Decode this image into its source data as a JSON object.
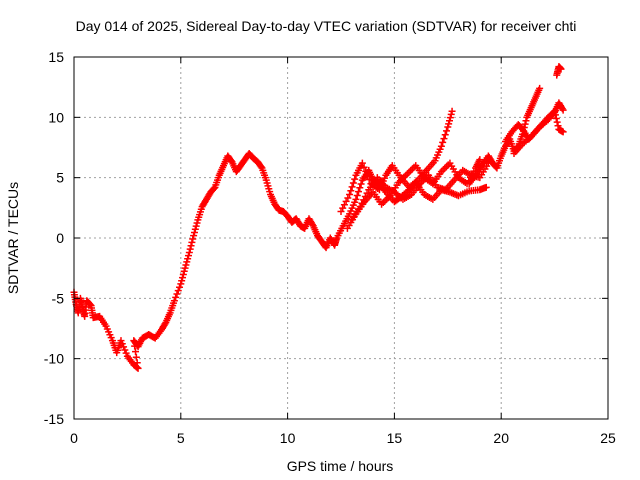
{
  "chart_data": {
    "type": "scatter",
    "title": "Day 014 of 2025, Sidereal Day-to-day VTEC variation (SDTVAR) for receiver chti",
    "xlabel": "GPS time / hours",
    "ylabel": "SDTVAR / TECUs",
    "xlim": [
      0,
      25
    ],
    "ylim": [
      -15,
      15
    ],
    "xticks": [
      0,
      5,
      10,
      15,
      20,
      25
    ],
    "yticks": [
      -15,
      -10,
      -5,
      0,
      5,
      10,
      15
    ],
    "grid": true,
    "marker": "+",
    "color": "#ff0000",
    "series": [
      {
        "points": [
          [
            0.0,
            -4.5
          ],
          [
            0.1,
            -5.5
          ],
          [
            0.2,
            -6.2
          ],
          [
            0.3,
            -5.0
          ],
          [
            0.4,
            -5.8
          ],
          [
            0.5,
            -6.5
          ],
          [
            0.6,
            -5.2
          ],
          [
            0.8,
            -5.6
          ],
          [
            0.9,
            -6.6
          ],
          [
            1.2,
            -6.5
          ],
          [
            1.5,
            -7.3
          ],
          [
            1.8,
            -8.5
          ],
          [
            2.0,
            -9.5
          ],
          [
            2.2,
            -8.5
          ],
          [
            2.5,
            -9.8
          ],
          [
            2.8,
            -10.5
          ],
          [
            3.0,
            -10.8
          ],
          [
            2.8,
            -8.5
          ],
          [
            3.0,
            -9.0
          ],
          [
            3.2,
            -8.3
          ],
          [
            3.5,
            -8.0
          ],
          [
            3.8,
            -8.3
          ],
          [
            4.1,
            -7.6
          ],
          [
            4.3,
            -7.0
          ],
          [
            4.5,
            -6.2
          ],
          [
            4.7,
            -5.2
          ],
          [
            5.0,
            -3.8
          ],
          [
            5.2,
            -2.5
          ],
          [
            5.4,
            -1.2
          ],
          [
            5.6,
            0.2
          ],
          [
            5.8,
            1.5
          ],
          [
            6.0,
            2.6
          ],
          [
            6.2,
            3.2
          ],
          [
            6.4,
            3.8
          ],
          [
            6.6,
            4.2
          ],
          [
            6.8,
            5.2
          ],
          [
            7.0,
            6.0
          ],
          [
            7.2,
            6.8
          ],
          [
            7.4,
            6.3
          ],
          [
            7.6,
            5.5
          ],
          [
            7.8,
            6.0
          ],
          [
            8.0,
            6.5
          ],
          [
            8.2,
            7.0
          ],
          [
            8.4,
            6.6
          ],
          [
            8.6,
            6.3
          ],
          [
            8.8,
            5.8
          ],
          [
            9.0,
            4.8
          ],
          [
            9.2,
            3.6
          ],
          [
            9.4,
            2.8
          ],
          [
            9.6,
            2.3
          ],
          [
            9.8,
            2.2
          ],
          [
            10.0,
            1.8
          ],
          [
            10.2,
            1.3
          ],
          [
            10.4,
            1.6
          ],
          [
            10.6,
            1.0
          ],
          [
            10.8,
            0.8
          ],
          [
            11.0,
            1.6
          ],
          [
            11.2,
            1.0
          ],
          [
            11.4,
            0.2
          ],
          [
            11.6,
            -0.3
          ],
          [
            11.8,
            -0.8
          ],
          [
            12.0,
            0.0
          ],
          [
            12.2,
            -0.6
          ],
          [
            12.3,
            0.0
          ],
          [
            12.6,
            1.0
          ],
          [
            12.9,
            2.0
          ],
          [
            13.2,
            3.2
          ],
          [
            13.5,
            4.8
          ],
          [
            13.8,
            5.6
          ],
          [
            14.0,
            4.8
          ],
          [
            14.3,
            4.5
          ],
          [
            14.6,
            3.8
          ],
          [
            15.0,
            3.0
          ],
          [
            15.3,
            3.4
          ],
          [
            15.7,
            4.0
          ],
          [
            16.0,
            4.6
          ],
          [
            16.4,
            3.6
          ],
          [
            16.8,
            3.2
          ],
          [
            17.2,
            4.0
          ],
          [
            17.6,
            3.8
          ],
          [
            18.0,
            3.5
          ],
          [
            18.5,
            3.9
          ],
          [
            19.0,
            4.0
          ],
          [
            19.3,
            4.2
          ],
          [
            12.5,
            2.2
          ],
          [
            12.9,
            3.6
          ],
          [
            13.2,
            5.2
          ],
          [
            13.5,
            6.2
          ],
          [
            13.9,
            4.5
          ],
          [
            14.3,
            4.0
          ],
          [
            14.6,
            5.2
          ],
          [
            14.9,
            6.0
          ],
          [
            15.3,
            5.0
          ],
          [
            15.7,
            4.2
          ],
          [
            16.1,
            4.8
          ],
          [
            16.5,
            5.6
          ],
          [
            16.9,
            6.4
          ],
          [
            17.2,
            7.6
          ],
          [
            17.5,
            9.2
          ],
          [
            17.7,
            10.5
          ],
          [
            12.8,
            0.8
          ],
          [
            13.2,
            2.0
          ],
          [
            13.6,
            3.0
          ],
          [
            14.0,
            3.8
          ],
          [
            14.4,
            2.8
          ],
          [
            14.8,
            3.5
          ],
          [
            15.2,
            4.6
          ],
          [
            15.6,
            5.3
          ],
          [
            16.0,
            6.0
          ],
          [
            16.4,
            5.0
          ],
          [
            16.8,
            4.5
          ],
          [
            17.2,
            5.5
          ],
          [
            17.6,
            6.2
          ],
          [
            18.0,
            5.0
          ],
          [
            18.4,
            4.5
          ],
          [
            18.8,
            5.8
          ],
          [
            19.0,
            6.5
          ],
          [
            13.0,
            1.5
          ],
          [
            13.4,
            2.6
          ],
          [
            13.8,
            4.0
          ],
          [
            14.2,
            5.0
          ],
          [
            14.6,
            4.2
          ],
          [
            15.0,
            3.8
          ],
          [
            15.4,
            3.2
          ],
          [
            15.8,
            3.6
          ],
          [
            16.2,
            4.5
          ],
          [
            16.6,
            5.2
          ],
          [
            17.0,
            4.2
          ],
          [
            17.4,
            4.0
          ],
          [
            17.8,
            4.8
          ],
          [
            18.2,
            5.6
          ],
          [
            18.6,
            5.2
          ],
          [
            19.0,
            5.0
          ],
          [
            19.4,
            6.2
          ],
          [
            18.5,
            4.5
          ],
          [
            18.8,
            5.2
          ],
          [
            19.1,
            6.0
          ],
          [
            19.4,
            6.8
          ],
          [
            19.6,
            6.2
          ],
          [
            19.8,
            5.8
          ],
          [
            20.0,
            6.8
          ],
          [
            20.2,
            7.6
          ],
          [
            20.4,
            8.2
          ],
          [
            20.6,
            7.2
          ],
          [
            20.8,
            7.6
          ],
          [
            21.0,
            8.6
          ],
          [
            21.2,
            10.0
          ],
          [
            21.4,
            10.8
          ],
          [
            21.6,
            11.6
          ],
          [
            21.8,
            12.4
          ],
          [
            20.2,
            8.0
          ],
          [
            20.5,
            8.8
          ],
          [
            20.8,
            9.4
          ],
          [
            21.0,
            9.0
          ],
          [
            21.3,
            8.2
          ],
          [
            21.6,
            8.8
          ],
          [
            21.9,
            9.4
          ],
          [
            22.2,
            10.0
          ],
          [
            22.5,
            10.5
          ],
          [
            22.7,
            9.0
          ],
          [
            22.9,
            8.8
          ],
          [
            20.6,
            7.0
          ],
          [
            21.0,
            7.8
          ],
          [
            21.4,
            8.4
          ],
          [
            21.8,
            9.2
          ],
          [
            22.2,
            9.8
          ],
          [
            22.5,
            10.4
          ],
          [
            22.7,
            11.2
          ],
          [
            22.9,
            10.6
          ],
          [
            22.6,
            13.5
          ],
          [
            22.7,
            14.2
          ],
          [
            22.8,
            14.0
          ]
        ]
      }
    ]
  }
}
